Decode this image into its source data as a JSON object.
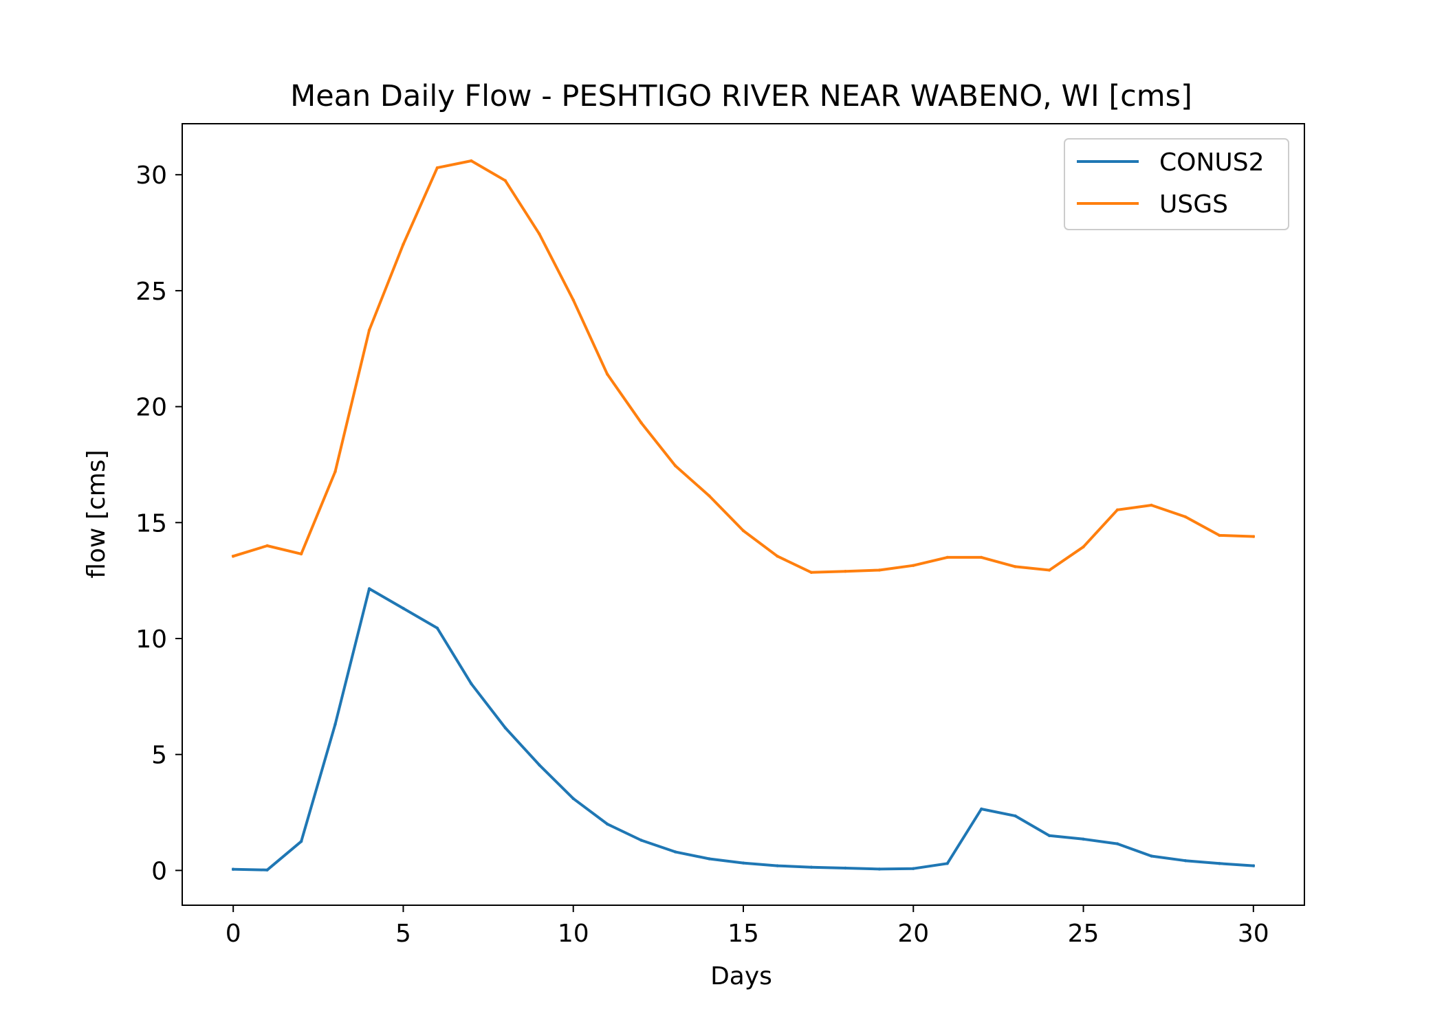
{
  "chart_data": {
    "type": "line",
    "title": "Mean Daily Flow - PESHTIGO RIVER NEAR WABENO, WI [cms]",
    "xlabel": "Days",
    "ylabel": "flow [cms]",
    "xlim": [
      -1.5,
      31.5
    ],
    "ylim": [
      -1.5,
      32.2
    ],
    "xticks": [
      0,
      5,
      10,
      15,
      20,
      25,
      30
    ],
    "yticks": [
      0,
      5,
      10,
      15,
      20,
      25,
      30
    ],
    "grid": false,
    "legend_position": "top-right",
    "x": [
      0,
      1,
      2,
      3,
      4,
      5,
      6,
      7,
      8,
      9,
      10,
      11,
      12,
      13,
      14,
      15,
      16,
      17,
      18,
      19,
      20,
      21,
      22,
      23,
      24,
      25,
      26,
      27,
      28,
      29,
      30
    ],
    "series": [
      {
        "name": "CONUS2",
        "color": "#1f77b4",
        "values": [
          0.05,
          0.02,
          1.25,
          6.3,
          12.15,
          11.3,
          10.45,
          8.05,
          6.15,
          4.55,
          3.1,
          2.0,
          1.3,
          0.8,
          0.5,
          0.32,
          0.2,
          0.14,
          0.1,
          0.06,
          0.08,
          0.3,
          2.65,
          2.35,
          1.5,
          1.35,
          1.15,
          0.62,
          0.42,
          0.3,
          0.2
        ]
      },
      {
        "name": "USGS",
        "color": "#ff7f0e",
        "values": [
          13.55,
          14.0,
          13.65,
          17.2,
          23.3,
          27.0,
          30.3,
          30.6,
          29.75,
          27.45,
          24.6,
          21.4,
          19.3,
          17.45,
          16.15,
          14.65,
          13.55,
          12.85,
          12.9,
          12.95,
          13.15,
          13.5,
          13.5,
          13.1,
          12.95,
          13.95,
          15.55,
          15.75,
          15.25,
          14.45,
          14.4
        ]
      }
    ]
  }
}
